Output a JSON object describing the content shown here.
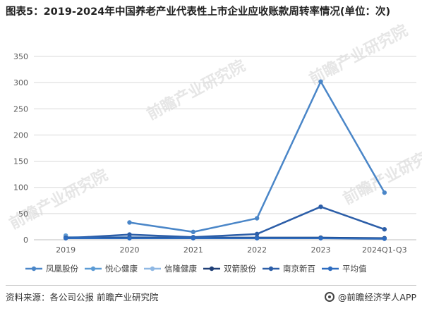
{
  "title": "图表5：2019-2024年中国养老产业代表性上市企业应收账款周转率情况(单位：次)",
  "source": "资料来源：各公司公报 前瞻产业研究院",
  "brand": "@前瞻经济学人APP",
  "watermark": "前瞻产业研究院",
  "colors": {
    "accent": "#3a7dc9",
    "grid": "#d9d9d9",
    "axis_text": "#595959"
  },
  "chart_data": {
    "type": "line",
    "categories": [
      "2019",
      "2020",
      "2021",
      "2022",
      "2023",
      "2024Q1-Q3"
    ],
    "ylim": [
      0,
      350
    ],
    "yticks": [
      0,
      50,
      100,
      150,
      200,
      250,
      300,
      350
    ],
    "grid": true,
    "legend_position": "bottom",
    "xlabel": "",
    "ylabel": "",
    "series": [
      {
        "name": "凤凰股份",
        "color": "#4a86c8",
        "values": [
          null,
          33,
          15,
          41,
          302,
          90
        ]
      },
      {
        "name": "悦心健康",
        "color": "#5b9bd5",
        "values": [
          8,
          null,
          null,
          null,
          null,
          null
        ]
      },
      {
        "name": "信隆健康",
        "color": "#8fb8e4",
        "values": [
          5,
          5,
          4,
          4,
          4,
          3
        ]
      },
      {
        "name": "双箭股份",
        "color": "#1f3f77",
        "values": [
          4,
          4,
          4,
          4,
          4,
          3
        ]
      },
      {
        "name": "南京新百",
        "color": "#2c5ea8",
        "values": [
          3,
          10,
          5,
          11,
          63,
          20
        ]
      },
      {
        "name": "平均值",
        "color": "#2d6cc0",
        "values": [
          3,
          3,
          3,
          3,
          3,
          2
        ]
      }
    ]
  }
}
